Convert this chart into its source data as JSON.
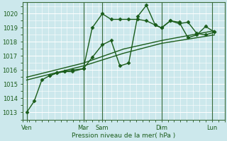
{
  "background_color": "#cce8ec",
  "grid_color": "#ffffff",
  "line_color": "#1a5c1a",
  "title": "Pression niveau de la mer( hPa )",
  "ylim": [
    1012.5,
    1020.8
  ],
  "yticks": [
    1013,
    1014,
    1015,
    1016,
    1017,
    1018,
    1019,
    1020
  ],
  "xlim": [
    0,
    16
  ],
  "day_labels": [
    "Ven",
    "Mar",
    "Sam",
    "Dim",
    "Lun"
  ],
  "day_positions": [
    0.3,
    4.8,
    6.3,
    11.0,
    15.0
  ],
  "series": [
    {
      "x": [
        0.3,
        0.9,
        1.5,
        2.1,
        2.7,
        3.3,
        3.9,
        4.8,
        5.5,
        6.3,
        7.0,
        7.7,
        8.4,
        9.1,
        9.8,
        10.5,
        11.0,
        11.7,
        12.4,
        13.1,
        13.8,
        14.5,
        15.2
      ],
      "y": [
        1013.0,
        1013.8,
        1015.3,
        1015.6,
        1015.8,
        1015.9,
        1015.9,
        1016.1,
        1019.0,
        1020.0,
        1019.6,
        1019.6,
        1019.6,
        1019.6,
        1019.5,
        1019.2,
        1019.0,
        1019.5,
        1019.4,
        1018.3,
        1018.5,
        1019.1,
        1018.7
      ],
      "marker": "D",
      "markersize": 2.5,
      "linewidth": 1.0
    },
    {
      "x": [
        2.1,
        2.7,
        3.3,
        3.9,
        4.8,
        5.5,
        6.3,
        7.0,
        7.7,
        8.4,
        9.1,
        9.8,
        10.5,
        11.0,
        11.7,
        12.4,
        13.1,
        13.8,
        14.5,
        15.2
      ],
      "y": [
        1015.6,
        1015.8,
        1015.9,
        1016.0,
        1016.1,
        1016.9,
        1017.8,
        1018.1,
        1016.3,
        1016.5,
        1019.8,
        1020.6,
        1019.2,
        1019.0,
        1019.5,
        1019.3,
        1019.4,
        1018.6,
        1018.5,
        1018.7
      ],
      "marker": "D",
      "markersize": 2.5,
      "linewidth": 1.0
    },
    {
      "x": [
        0.3,
        4.8,
        8.0,
        11.0,
        15.2
      ],
      "y": [
        1015.3,
        1016.3,
        1017.2,
        1017.9,
        1018.5
      ],
      "marker": null,
      "markersize": 0,
      "linewidth": 1.0
    },
    {
      "x": [
        0.3,
        4.8,
        8.0,
        11.0,
        15.2
      ],
      "y": [
        1015.5,
        1016.5,
        1017.5,
        1018.1,
        1018.8
      ],
      "marker": null,
      "markersize": 0,
      "linewidth": 1.0
    }
  ]
}
